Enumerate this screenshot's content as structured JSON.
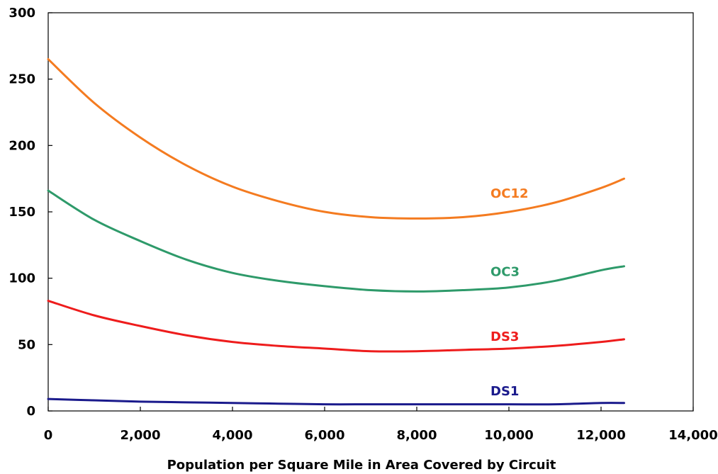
{
  "chart_data": {
    "type": "line",
    "title": "",
    "xlabel": "Population per Square Mile in Area Covered by Circuit",
    "ylabel": "",
    "xlim": [
      0,
      14000
    ],
    "ylim": [
      0,
      300
    ],
    "x_ticks": [
      0,
      2000,
      4000,
      6000,
      8000,
      10000,
      12000,
      14000
    ],
    "x_tick_labels": [
      "0",
      "2,000",
      "4,000",
      "6,000",
      "8,000",
      "10,000",
      "12,000",
      "14,000"
    ],
    "y_ticks": [
      0,
      50,
      100,
      150,
      200,
      250,
      300
    ],
    "y_tick_labels": [
      "0",
      "50",
      "100",
      "150",
      "200",
      "250",
      "300"
    ],
    "grid": false,
    "legend": "inline labels",
    "x": [
      0,
      1000,
      2000,
      3000,
      4000,
      5000,
      6000,
      7000,
      8000,
      9000,
      10000,
      11000,
      12000,
      12500
    ],
    "series": [
      {
        "name": "OC12",
        "color": "#F47B20",
        "label_x": 9600,
        "label_y": 164,
        "values": [
          265,
          232,
          206,
          185,
          169,
          158,
          150,
          146,
          145,
          146,
          150,
          157,
          168,
          175
        ]
      },
      {
        "name": "OC3",
        "color": "#2E9A6A",
        "label_x": 9600,
        "label_y": 105,
        "values": [
          166,
          144,
          128,
          114,
          104,
          98,
          94,
          91,
          90,
          91,
          93,
          98,
          106,
          109
        ]
      },
      {
        "name": "DS3",
        "color": "#EE1C1C",
        "label_x": 9600,
        "label_y": 56,
        "values": [
          83,
          72,
          64,
          57,
          52,
          49,
          47,
          45,
          45,
          46,
          47,
          49,
          52,
          54
        ]
      },
      {
        "name": "DS1",
        "color": "#1A1A8C",
        "label_x": 9600,
        "label_y": 15,
        "values": [
          9,
          8,
          7,
          6.5,
          6,
          5.5,
          5,
          5,
          5,
          5,
          5,
          5,
          6,
          6
        ]
      }
    ]
  }
}
